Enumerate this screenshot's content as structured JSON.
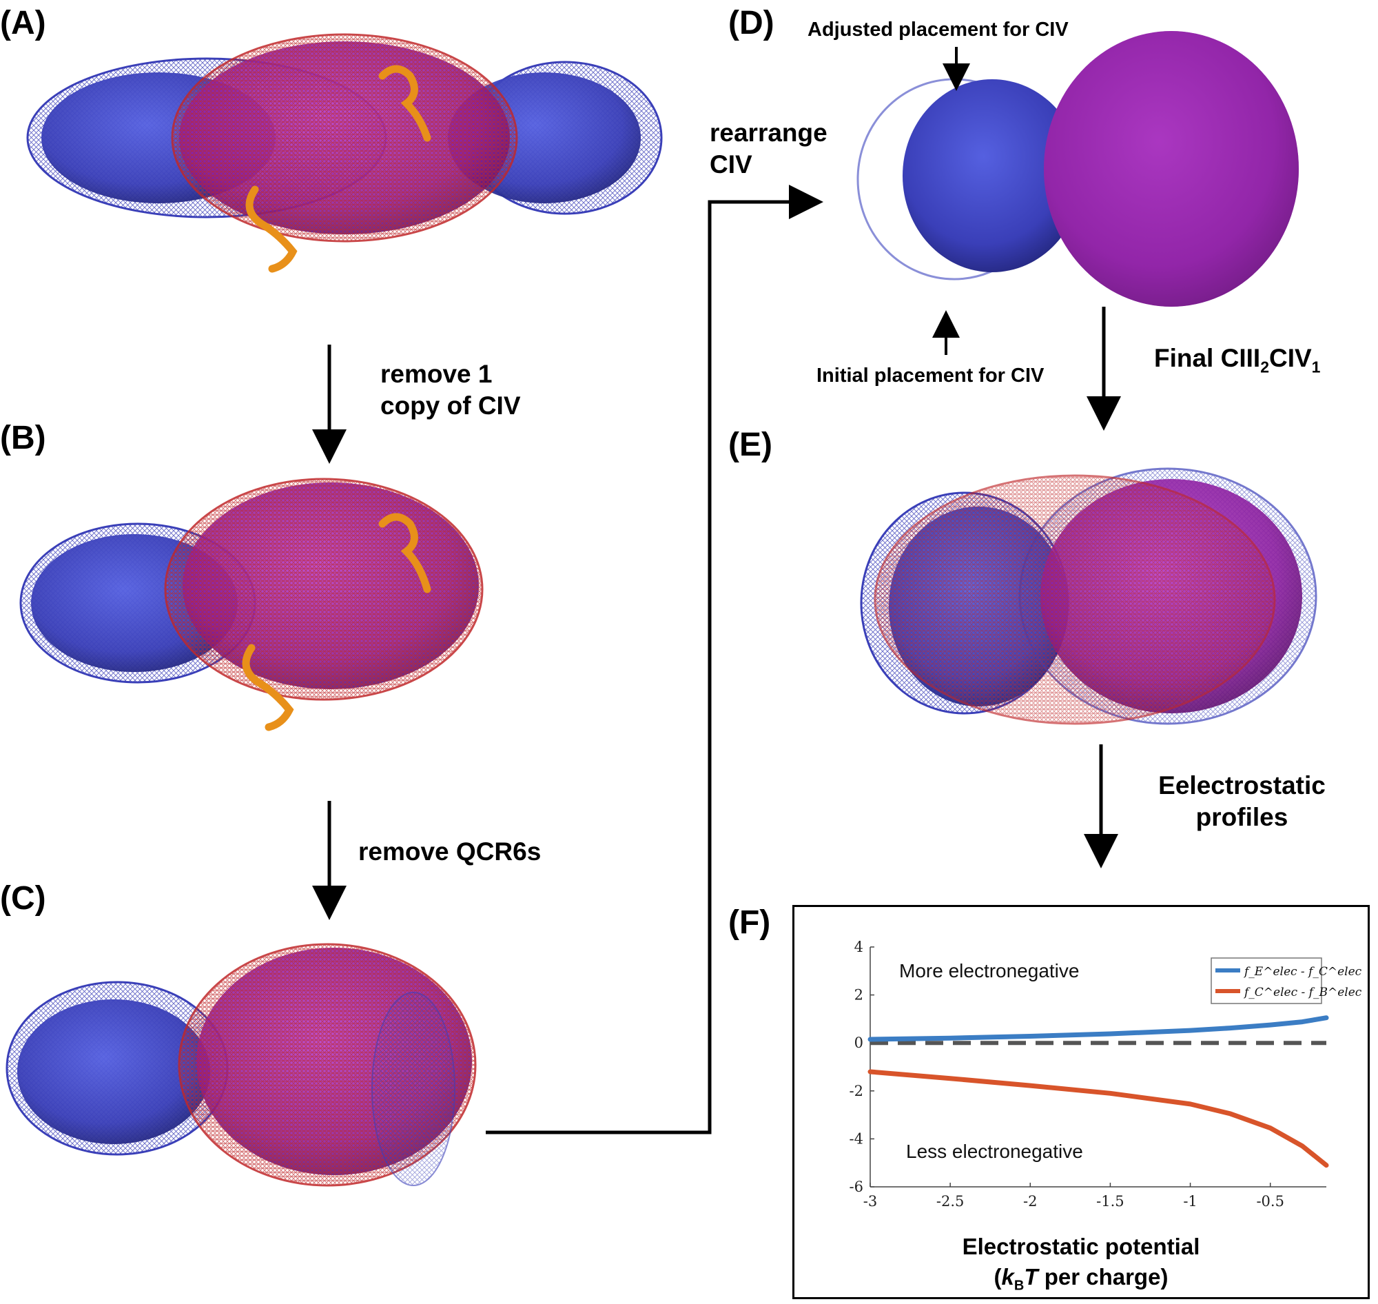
{
  "panels": {
    "A": "(A)",
    "B": "(B)",
    "C": "(C)",
    "D": "(D)",
    "E": "(E)",
    "F": "(F)"
  },
  "steps": {
    "remove_civ_line1": "remove 1",
    "remove_civ_line2": "copy of CIV",
    "remove_qcr6s": "remove QCR6s",
    "rearrange_line1": "rearrange",
    "rearrange_line2": "CIV",
    "final_prefix": "Final CIII",
    "final_sub1": "2",
    "final_mid": "CIV",
    "final_sub2": "1",
    "electrostatic_line1": "Eelectrostatic",
    "electrostatic_line2": "profiles"
  },
  "annotations": {
    "adjusted": "Adjusted placement for CIV",
    "initial": "Initial placement for CIV"
  },
  "colors": {
    "civ_blue": "#3a3fb8",
    "ciii_magenta": "#8c1fa0",
    "mesh_red": "#c0282a",
    "qcr6_orange": "#e8901a",
    "series_blue": "#3b7dc4",
    "series_red": "#d8542a"
  },
  "chart_data": {
    "type": "line",
    "xlabel": "Electrostatic potential",
    "ylabel_line2_prefix": "(",
    "ylabel_kb": "k",
    "ylabel_kb_sub": "B",
    "ylabel_t": "T",
    "ylabel_suffix": " per charge)",
    "xlim": [
      -3,
      -0.15
    ],
    "ylim": [
      -6,
      4
    ],
    "xticks": [
      "-3",
      "-2.5",
      "-2",
      "-1.5",
      "-1",
      "-0.5"
    ],
    "xtick_values": [
      -3,
      -2.5,
      -2,
      -1.5,
      -1,
      -0.5
    ],
    "yticks": [
      "4",
      "2",
      "0",
      "-2",
      "-4",
      "-6"
    ],
    "ytick_values": [
      4,
      2,
      0,
      -2,
      -4,
      -6
    ],
    "annotations": {
      "upper": "More electronegative",
      "lower": "Less electronegative"
    },
    "legend": {
      "placement": "top-right",
      "entry1": "f_E^elec - f_C^elec",
      "entry2": "f_C^elec - f_B^elec"
    },
    "reference_line": 0,
    "series": [
      {
        "name": "f_E^elec - f_C^elec",
        "color": "#3b7dc4",
        "x": [
          -3,
          -2.5,
          -2,
          -1.5,
          -1,
          -0.75,
          -0.5,
          -0.3,
          -0.15
        ],
        "y": [
          0.15,
          0.2,
          0.28,
          0.38,
          0.52,
          0.62,
          0.75,
          0.88,
          1.05
        ]
      },
      {
        "name": "f_C^elec - f_B^elec",
        "color": "#d8542a",
        "x": [
          -3,
          -2.5,
          -2,
          -1.5,
          -1,
          -0.75,
          -0.5,
          -0.3,
          -0.15
        ],
        "y": [
          -1.2,
          -1.48,
          -1.78,
          -2.1,
          -2.55,
          -2.95,
          -3.55,
          -4.3,
          -5.1
        ]
      }
    ]
  }
}
